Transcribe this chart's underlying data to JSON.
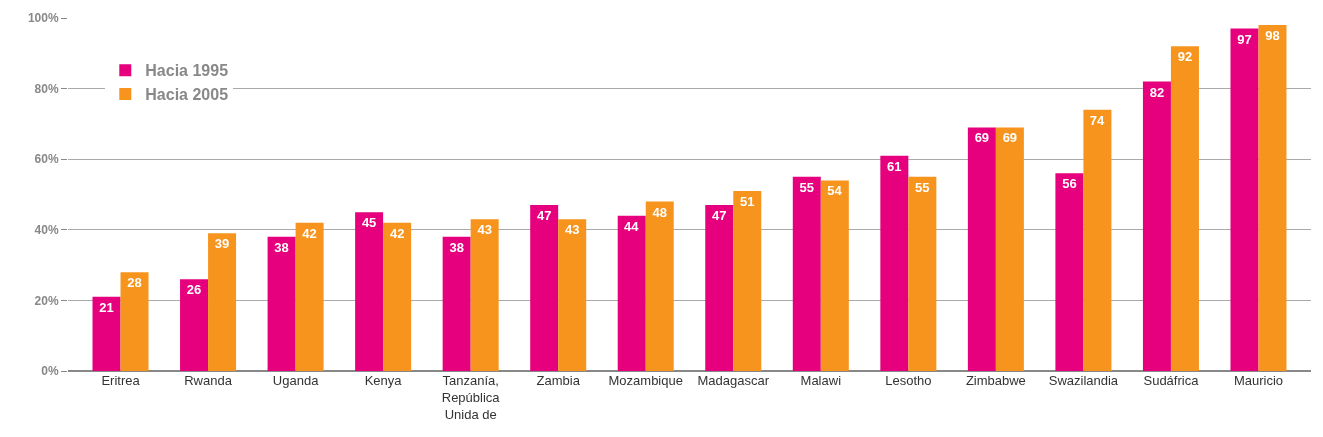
{
  "chart_data": {
    "type": "bar",
    "categories": [
      "Eritrea",
      "Rwanda",
      "Uganda",
      "Kenya",
      "Tanzanía, República Unida de",
      "Zambia",
      "Mozambique",
      "Madagascar",
      "Malawi",
      "Lesotho",
      "Zimbabwe",
      "Swazilandia",
      "Sudáfrica",
      "Mauricio"
    ],
    "series": [
      {
        "name": "Hacia 1995",
        "color": "#e6007e",
        "values": [
          21,
          26,
          38,
          45,
          38,
          47,
          44,
          47,
          55,
          61,
          69,
          56,
          82,
          97
        ]
      },
      {
        "name": "Hacia 2005",
        "color": "#f7941d",
        "values": [
          28,
          39,
          42,
          42,
          43,
          43,
          48,
          51,
          54,
          55,
          69,
          74,
          92,
          98
        ]
      }
    ],
    "ylim": [
      0,
      100
    ],
    "yticks": [
      {
        "value": 0,
        "label": "0%"
      },
      {
        "value": 20,
        "label": "20%"
      },
      {
        "value": 40,
        "label": "40%"
      },
      {
        "value": 60,
        "label": "60%"
      },
      {
        "value": 80,
        "label": "80%"
      },
      {
        "value": 100,
        "label": "100%"
      }
    ],
    "grid": "y",
    "legend": "top left",
    "data_labels": true
  }
}
